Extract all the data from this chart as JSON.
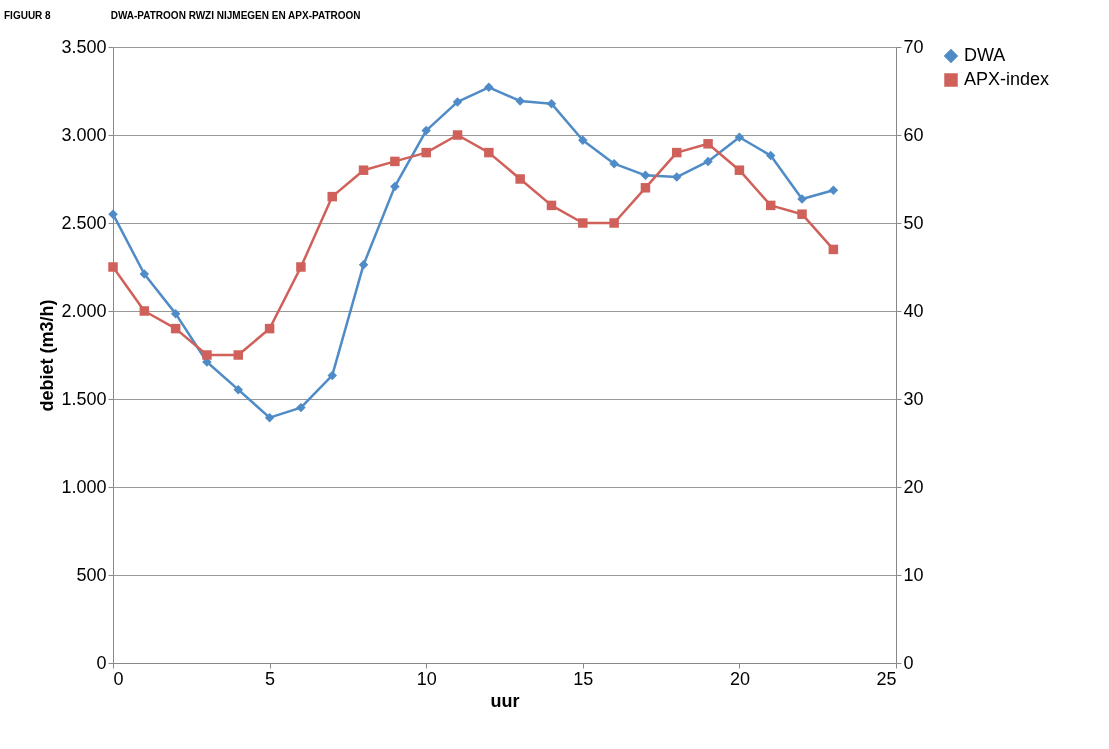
{
  "chart_data": {
    "type": "line",
    "title": "FIGUUR 8",
    "subtitle": "DWA-PATROON RWZI NIJMEGEN EN APX-PATROON",
    "xlabel": "uur",
    "ylabel": "debiet (m3/h)",
    "x": [
      0,
      1,
      2,
      3,
      4,
      5,
      6,
      7,
      8,
      9,
      10,
      11,
      12,
      13,
      14,
      15,
      16,
      17,
      18,
      19,
      20,
      21,
      22,
      23
    ],
    "series": [
      {
        "name": "DWA",
        "color": "#4f8bc6",
        "marker": "diamond",
        "values": [
          2550,
          2210,
          1985,
          1710,
          1553,
          1394,
          1451,
          1634,
          2263,
          2708,
          3025,
          3188,
          3271,
          3193,
          3178,
          2970,
          2837,
          2771,
          2761,
          2850,
          2987,
          2883,
          2636,
          2686
        ]
      },
      {
        "name": "APX-index",
        "color": "#d0605a",
        "marker": "square",
        "axis": "y2",
        "values": [
          45,
          40,
          38,
          35,
          35,
          38,
          45,
          53,
          56,
          57,
          58,
          60,
          58,
          55,
          52,
          50,
          50,
          54,
          58,
          59,
          56,
          52,
          51,
          47
        ]
      }
    ],
    "xlim": [
      0,
      25
    ],
    "xticks": [
      0,
      5,
      10,
      15,
      20,
      25
    ],
    "ylim": [
      0,
      3500
    ],
    "yticks": [
      0,
      {
        "value": 500,
        "label": "500"
      },
      {
        "value": 1000,
        "label": "1.000"
      },
      {
        "value": 1500,
        "label": "1.500"
      },
      {
        "value": 2000,
        "label": "2.000"
      },
      {
        "value": 2500,
        "label": "2.500"
      },
      {
        "value": 3000,
        "label": "3.000"
      },
      {
        "value": 3500,
        "label": "3.500"
      }
    ],
    "y2lim": [
      0,
      70
    ],
    "y2ticks": [
      0,
      10,
      20,
      30,
      40,
      50,
      60,
      70
    ],
    "grid": "y",
    "legend": "right",
    "line_style": "solid"
  }
}
